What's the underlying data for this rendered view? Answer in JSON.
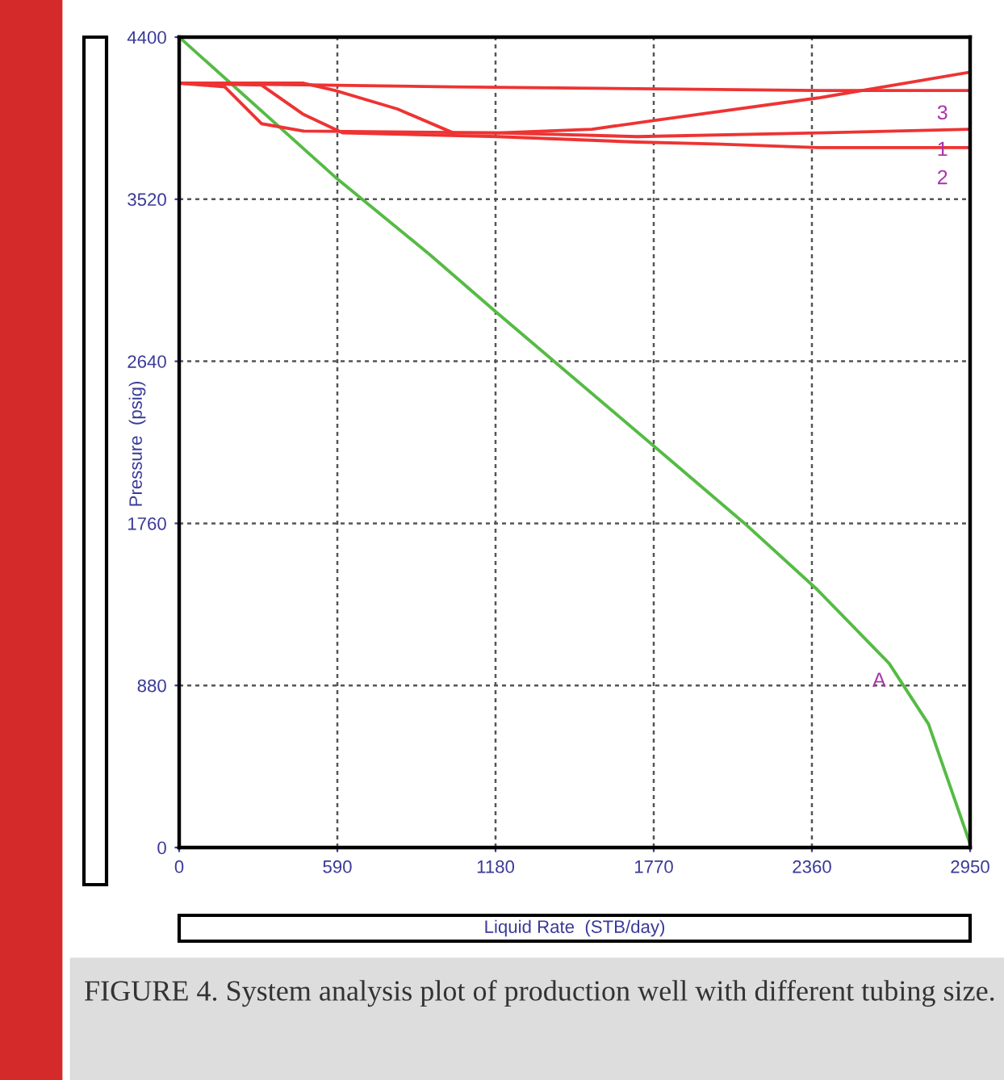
{
  "chart_data": {
    "type": "line",
    "xlabel": "Liquid Rate  (STB/day)",
    "ylabel": "Pressure  (psig)",
    "xlim": [
      0,
      2950
    ],
    "ylim": [
      0,
      4400
    ],
    "xticks": [
      0,
      590,
      1180,
      1770,
      2360,
      2950
    ],
    "yticks": [
      0,
      880,
      1760,
      2640,
      3520,
      4400
    ],
    "grid": true,
    "marker": "none",
    "line_style": "solid",
    "series": [
      {
        "color": "#55bb44",
        "x": [
          0,
          582,
          934,
          1180,
          1770,
          2109,
          2380,
          2648,
          2795,
          2950
        ],
        "values": [
          4400,
          3640,
          3220,
          2910,
          2180,
          1760,
          1400,
          1000,
          670,
          20
        ]
      },
      {
        "color": "#ee3333",
        "x": [
          0,
          1022,
          1708,
          2384,
          2950
        ],
        "values": [
          4150,
          4130,
          4120,
          4110,
          4110
        ]
      },
      {
        "color": "#ee3333",
        "x": [
          0,
          464,
          582,
          814,
          1022,
          1190,
          1540,
          1785,
          2384,
          2950
        ],
        "values": [
          4150,
          4150,
          4110,
          4010,
          3880,
          3880,
          3900,
          3950,
          4070,
          4210
        ]
      },
      {
        "color": "#ee3333",
        "x": [
          0,
          170,
          307,
          464,
          1189,
          1708,
          2384,
          2950
        ],
        "values": [
          4150,
          4130,
          3930,
          3890,
          3880,
          3860,
          3880,
          3900
        ]
      },
      {
        "color": "#ee3333",
        "x": [
          0,
          307,
          464,
          611,
          1189,
          1708,
          2000,
          2384,
          2950
        ],
        "values": [
          4150,
          4140,
          3980,
          3880,
          3860,
          3830,
          3820,
          3800,
          3800
        ]
      }
    ],
    "annotations": [
      "3",
      "1",
      "2",
      "A",
      "FIGURE 4. System analysis plot of production well with different tubing size."
    ]
  }
}
